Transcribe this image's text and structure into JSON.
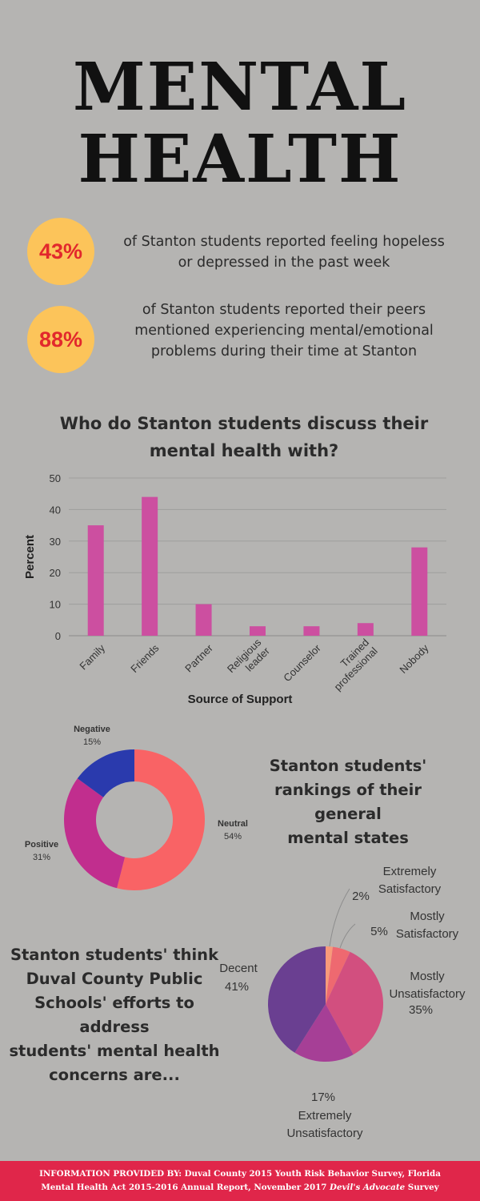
{
  "title": {
    "line1": "MENTAL",
    "line2": "HEALTH"
  },
  "stats": [
    {
      "value": "43%",
      "line1": "of Stanton students reported feeling hopeless",
      "line2": "or depressed in the past week"
    },
    {
      "value": "88%",
      "line1": "of Stanton students reported their peers",
      "line2": "mentioned experiencing mental/emotional",
      "line3": "problems during their time at Stanton"
    }
  ],
  "colors": {
    "bar": "#cc4fa0",
    "neutral": "#f96365",
    "positive": "#c12e8e",
    "negative": "#2a3aad",
    "pie_decent": "#6a3f91",
    "pie_mostly_unsat": "#d24f7f",
    "pie_extremely_unsat": "#a63f96",
    "pie_mostly_sat": "#ee6970",
    "pie_extremely_sat": "#f89a7a",
    "footer": "#e0264a"
  },
  "chart_data": [
    {
      "type": "bar",
      "title": "Who do Stanton students discuss their mental health with?",
      "xlabel": "Source of Support",
      "ylabel": "Percent",
      "categories": [
        "Family",
        "Friends",
        "Partner",
        "Religious leader",
        "Counselor",
        "Trained professional",
        "Nobody"
      ],
      "category_lines": [
        [
          "Family"
        ],
        [
          "Friends"
        ],
        [
          "Partner"
        ],
        [
          "Religious",
          "leader"
        ],
        [
          "Counselor"
        ],
        [
          "Trained",
          "professional"
        ],
        [
          "Nobody"
        ]
      ],
      "values": [
        35,
        44,
        10,
        3,
        3,
        4,
        28
      ],
      "ylim": [
        0,
        50
      ],
      "yticks": [
        0,
        10,
        20,
        30,
        40,
        50
      ],
      "grid": true
    },
    {
      "type": "pie",
      "title": "Stanton students' rankings of their general mental states",
      "title_lines": [
        "Stanton students'",
        "rankings of their general",
        "mental states"
      ],
      "donut": true,
      "slices": [
        {
          "label": "Neutral",
          "value": 54,
          "display": "54%"
        },
        {
          "label": "Positive",
          "value": 31,
          "display": "31%"
        },
        {
          "label": "Negative",
          "value": 15,
          "display": "15%"
        }
      ]
    },
    {
      "type": "pie",
      "title": "Stanton students' think Duval County Public Schools' efforts to address students' mental health concerns are...",
      "title_lines": [
        "Stanton students' think",
        "Duval County Public",
        "Schools' efforts to address",
        "students' mental health",
        "concerns are..."
      ],
      "slices": [
        {
          "label": "Extremely Satisfactory",
          "label_lines": [
            "Extremely",
            "Satisfactory"
          ],
          "value": 2,
          "display": "2%"
        },
        {
          "label": "Mostly Satisfactory",
          "label_lines": [
            "Mostly",
            "Satisfactory"
          ],
          "value": 5,
          "display": "5%"
        },
        {
          "label": "Mostly Unsatisfactory",
          "label_lines": [
            "Mostly",
            "Unsatisfactory"
          ],
          "value": 35,
          "display": "35%"
        },
        {
          "label": "Extremely Unsatisfactory",
          "label_lines": [
            "Extremely",
            "Unsatisfactory"
          ],
          "value": 17,
          "display": "17%"
        },
        {
          "label": "Decent",
          "label_lines": [
            "Decent"
          ],
          "value": 41,
          "display": "41%"
        }
      ]
    }
  ],
  "footer": {
    "line1": "INFORMATION PROVIDED BY: Duval County 2015 Youth Risk Behavior Survey, Florida",
    "line2_a": "Mental Health Act 2015-2016 Annual Report, November 2017 ",
    "line2_b": "Devil's Advocate",
    "line2_c": " Survey"
  }
}
